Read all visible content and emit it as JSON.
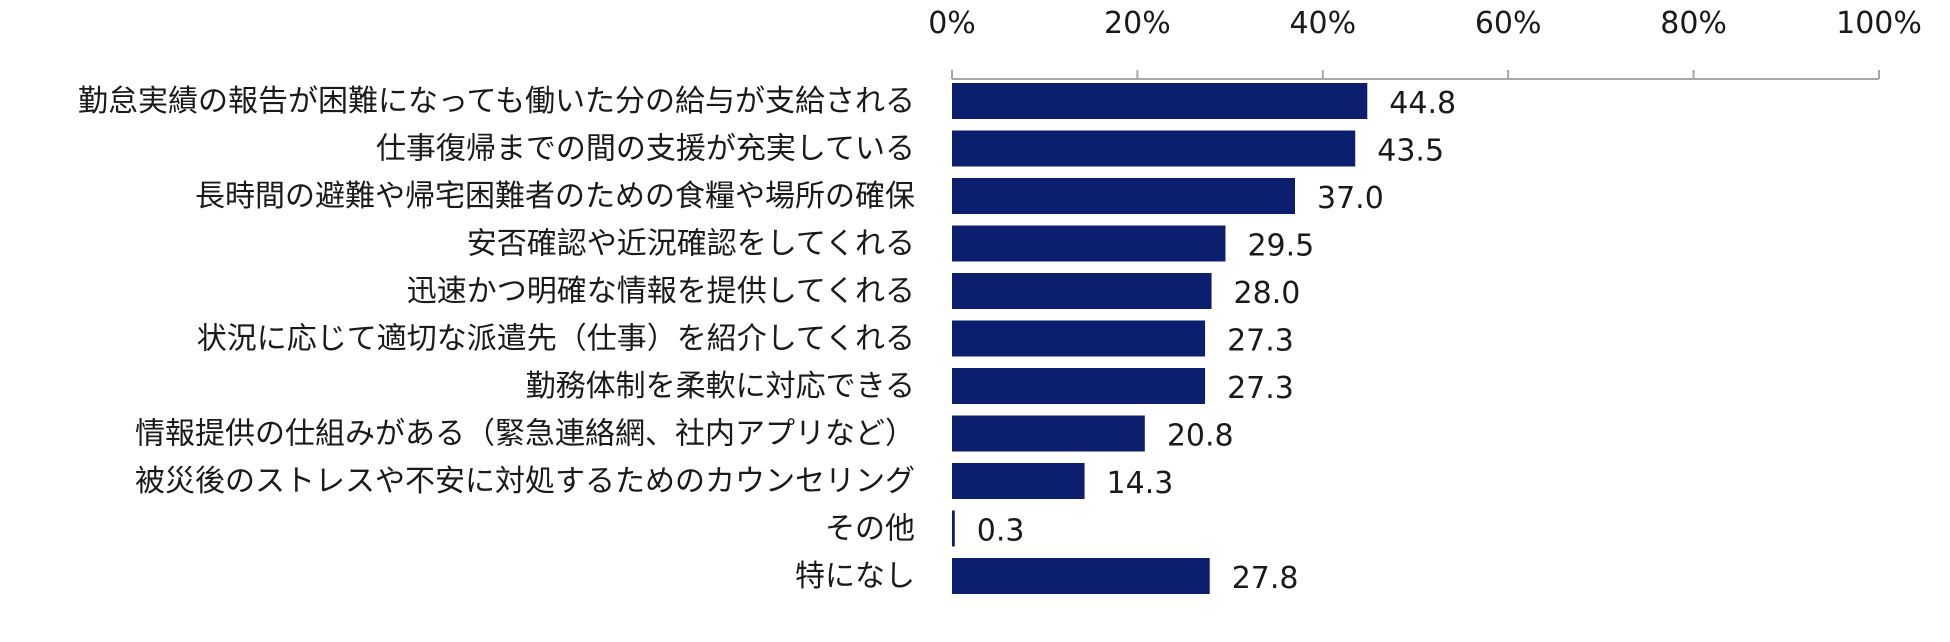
{
  "chart_data": {
    "type": "bar",
    "orientation": "horizontal",
    "categories": [
      "勤怠実績の報告が困難になっても働いた分の給与が支給される",
      "仕事復帰までの間の支援が充実している",
      "長時間の避難や帰宅困難者のための食糧や場所の確保",
      "安否確認や近況確認をしてくれる",
      "迅速かつ明確な情報を提供してくれる",
      "状況に応じて適切な派遣先（仕事）を紹介してくれる",
      "勤務体制を柔軟に対応できる",
      "情報提供の仕組みがある（緊急連絡網、社内アプリなど）",
      "被災後のストレスや不安に対処するためのカウンセリング",
      "その他",
      "特になし"
    ],
    "values": [
      44.8,
      43.5,
      37.0,
      29.5,
      28.0,
      27.3,
      27.3,
      20.8,
      14.3,
      0.3,
      27.8
    ],
    "value_labels": [
      "44.8",
      "43.5",
      "37.0",
      "29.5",
      "28.0",
      "27.3",
      "27.3",
      "20.8",
      "14.3",
      "0.3",
      "27.8"
    ],
    "xlim": [
      0,
      100
    ],
    "x_ticks": [
      0,
      20,
      40,
      60,
      80,
      100
    ],
    "x_tick_labels": [
      "0%",
      "20%",
      "40%",
      "60%",
      "80%",
      "100%"
    ],
    "x_axis_position": "top",
    "grid": false,
    "bar_color": "#0b1f6e",
    "axis_color": "#a6a6a6"
  }
}
